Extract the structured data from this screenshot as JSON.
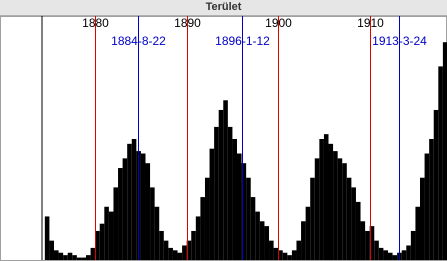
{
  "chart_data": {
    "type": "histogram",
    "title": "Terület",
    "bins": [
      1874.5,
      1875,
      1875.5,
      1876,
      1876.5,
      1877,
      1877.5,
      1878,
      1878.5,
      1879,
      1879.5,
      1880,
      1880.5,
      1881,
      1881.5,
      1882,
      1882.5,
      1883,
      1883.5,
      1884,
      1884.5,
      1885,
      1885.5,
      1886,
      1886.5,
      1887,
      1887.5,
      1888,
      1888.5,
      1889,
      1889.5,
      1890,
      1890.5,
      1891,
      1891.5,
      1892,
      1892.5,
      1893,
      1893.5,
      1894,
      1894.5,
      1895,
      1895.5,
      1896,
      1896.5,
      1897,
      1897.5,
      1898,
      1898.5,
      1899,
      1899.5,
      1900,
      1900.5,
      1901,
      1901.5,
      1902,
      1902.5,
      1903,
      1903.5,
      1904,
      1904.5,
      1905,
      1905.5,
      1906,
      1906.5,
      1907,
      1907.5,
      1908,
      1908.5,
      1909,
      1909.5,
      1910,
      1910.5,
      1911,
      1911.5,
      1912,
      1912.5,
      1913,
      1913.5,
      1914,
      1914.5,
      1915,
      1915.5,
      1916,
      1916.5,
      1917,
      1917.5,
      1918,
      1918.5
    ],
    "values": [
      18,
      8,
      4,
      3,
      2,
      3,
      2,
      1,
      1,
      2,
      5,
      12,
      15,
      22,
      20,
      30,
      38,
      42,
      48,
      50,
      45,
      44,
      40,
      30,
      22,
      12,
      8,
      5,
      4,
      3,
      6,
      8,
      12,
      18,
      26,
      34,
      46,
      55,
      62,
      66,
      55,
      50,
      44,
      40,
      34,
      26,
      20,
      16,
      14,
      8,
      5,
      4,
      3,
      2,
      4,
      8,
      16,
      22,
      34,
      42,
      50,
      52,
      48,
      45,
      42,
      40,
      34,
      30,
      24,
      16,
      12,
      14,
      8,
      5,
      4,
      3,
      2,
      3,
      4,
      6,
      12,
      22,
      34,
      44,
      50,
      62,
      80,
      90
    ],
    "color": "#000000",
    "xlim": [
      1869.6,
      1918.45
    ],
    "ylim": [
      0,
      100
    ],
    "xticks": [
      1880,
      1890,
      1900,
      1910
    ],
    "tick_color": "#e00000",
    "markers": [
      {
        "value": 1884.64,
        "label": "1884-8-22"
      },
      {
        "value": 1896.03,
        "label": "1896-1-12"
      },
      {
        "value": 1913.23,
        "label": "1913-3-24"
      }
    ],
    "marker_color": "#0000c8"
  }
}
